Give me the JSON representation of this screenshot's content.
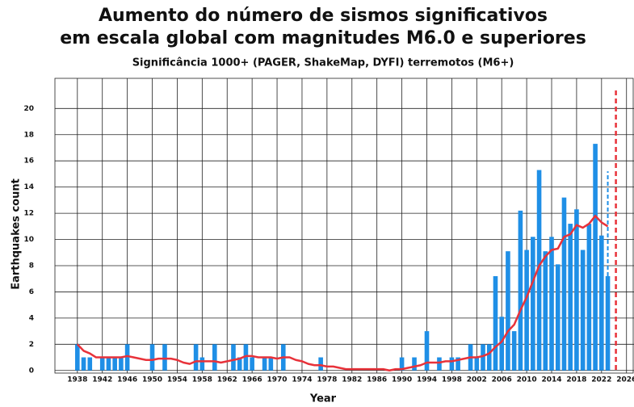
{
  "chart_data": {
    "type": "bar",
    "title": [
      "Aumento do número de sismos significativos",
      "em escala global com magnitudes M6.0 e superiores"
    ],
    "subtitle": "Significância 1000+ (PAGER, ShakeMap, DYFI) terremotos (M6+)",
    "x_label": "Year",
    "y_label": "Earthquakes count",
    "x": [
      1938,
      1939,
      1940,
      1941,
      1942,
      1943,
      1944,
      1945,
      1946,
      1947,
      1948,
      1949,
      1950,
      1951,
      1952,
      1953,
      1954,
      1955,
      1956,
      1957,
      1958,
      1959,
      1960,
      1961,
      1962,
      1963,
      1964,
      1965,
      1966,
      1967,
      1968,
      1969,
      1970,
      1971,
      1972,
      1973,
      1974,
      1975,
      1976,
      1977,
      1978,
      1979,
      1980,
      1981,
      1982,
      1983,
      1984,
      1985,
      1986,
      1987,
      1988,
      1989,
      1990,
      1991,
      1992,
      1993,
      1994,
      1995,
      1996,
      1997,
      1998,
      1999,
      2000,
      2001,
      2002,
      2003,
      2004,
      2005,
      2006,
      2007,
      2008,
      2009,
      2010,
      2011,
      2012,
      2013,
      2014,
      2015,
      2016,
      2017,
      2018,
      2019,
      2020,
      2021,
      2022,
      2023
    ],
    "series": [
      {
        "color": "#1f8fe6",
        "values": [
          2,
          1,
          1,
          0,
          1,
          1,
          1,
          1,
          2,
          0,
          0,
          0,
          2,
          0,
          2,
          0,
          0,
          0,
          0,
          2,
          1,
          0,
          2,
          0,
          0,
          2,
          1,
          2,
          1,
          0,
          1,
          1,
          0,
          2,
          0,
          0,
          0,
          0,
          0,
          1,
          0,
          0,
          0,
          0,
          0,
          0,
          0,
          0,
          0,
          0,
          0,
          0,
          1,
          0,
          1,
          0,
          3,
          0,
          1,
          0,
          1,
          1,
          0,
          2,
          1,
          2,
          2,
          7.2,
          4.1,
          9.1,
          3,
          12.2,
          9.2,
          10.2,
          15.3,
          9.1,
          10.2,
          8.1,
          13.2,
          11.2,
          12.3,
          9.2,
          11.2,
          17.3,
          10.3,
          7.2
        ]
      },
      {
        "color": "#1f8fe6",
        "dashed": true,
        "values": [
          null,
          null,
          null,
          null,
          null,
          null,
          null,
          null,
          null,
          null,
          null,
          null,
          null,
          null,
          null,
          null,
          null,
          null,
          null,
          null,
          null,
          null,
          null,
          null,
          null,
          null,
          null,
          null,
          null,
          null,
          null,
          null,
          null,
          null,
          null,
          null,
          null,
          null,
          null,
          null,
          null,
          null,
          null,
          null,
          null,
          null,
          null,
          null,
          null,
          null,
          null,
          null,
          null,
          null,
          null,
          null,
          null,
          null,
          null,
          null,
          null,
          null,
          null,
          null,
          null,
          null,
          null,
          null,
          null,
          null,
          null,
          null,
          null,
          null,
          null,
          null,
          null,
          null,
          null,
          null,
          null,
          null,
          null,
          null,
          null,
          15.2
        ]
      },
      {
        "type": "line",
        "color": "#e8323a",
        "values": [
          2.0,
          1.5,
          1.3,
          1.0,
          1.0,
          1.0,
          1.0,
          1.0,
          1.1,
          1.0,
          0.9,
          0.8,
          0.8,
          0.9,
          0.9,
          0.9,
          0.8,
          0.6,
          0.5,
          0.7,
          0.7,
          0.7,
          0.7,
          0.6,
          0.7,
          0.8,
          0.9,
          1.1,
          1.1,
          1.0,
          1.0,
          1.0,
          0.9,
          1.0,
          1.0,
          0.8,
          0.7,
          0.5,
          0.4,
          0.4,
          0.3,
          0.3,
          0.2,
          0.1,
          0.1,
          0.1,
          0.1,
          0.1,
          0.1,
          0.1,
          0,
          0.1,
          0.1,
          0.2,
          0.3,
          0.4,
          0.6,
          0.6,
          0.6,
          0.7,
          0.7,
          0.8,
          0.9,
          1.0,
          1.0,
          1.1,
          1.3,
          1.8,
          2.2,
          3.0,
          3.5,
          4.6,
          5.6,
          6.8,
          8.0,
          8.7,
          9.2,
          9.3,
          10.2,
          10.4,
          11.1,
          10.9,
          11.2,
          11.8,
          11.3,
          11.0
        ]
      }
    ],
    "reference_line": {
      "x": 2024.3,
      "color": "#e8323a"
    },
    "xlim": [
      1934.4,
      2027.2
    ],
    "xticks": [
      1938,
      1942,
      1946,
      1950,
      1954,
      1958,
      1962,
      1966,
      1970,
      1974,
      1978,
      1982,
      1986,
      1990,
      1994,
      1998,
      2002,
      2006,
      2010,
      2014,
      2018,
      2022,
      2026
    ],
    "ylim": [
      -0.2,
      22.3
    ],
    "yticks": [
      0,
      2,
      4,
      6,
      8,
      10,
      12,
      14,
      16,
      18,
      20
    ],
    "grid": true
  }
}
